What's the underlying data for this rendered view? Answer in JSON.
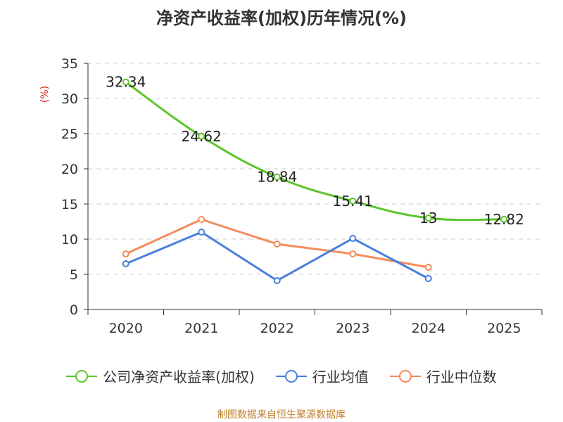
{
  "chart_data": {
    "type": "line",
    "title": "净资产收益率(加权)历年情况(%)",
    "ylabel": "(%)",
    "ylim": [
      0,
      35
    ],
    "yticks": [
      0,
      5,
      10,
      15,
      20,
      25,
      30,
      35
    ],
    "categories": [
      "2020",
      "2021",
      "2022",
      "2023",
      "2024",
      "2025"
    ],
    "series": [
      {
        "name": "公司净资产收益率(加权)",
        "color": "#5cc52b",
        "values": [
          32.34,
          24.62,
          18.84,
          15.41,
          13,
          12.82
        ],
        "labels": [
          "32.34",
          "24.62",
          "18.84",
          "15.41",
          "13",
          "12.82"
        ],
        "smooth": true
      },
      {
        "name": "行业均值",
        "color": "#4a7fdc",
        "values": [
          6.5,
          11.0,
          4.1,
          10.1,
          4.4,
          null
        ],
        "smooth": false
      },
      {
        "name": "行业中位数",
        "color": "#f58b5c",
        "values": [
          7.9,
          12.8,
          9.3,
          7.9,
          6.0,
          null
        ],
        "smooth": false
      }
    ],
    "grid": true,
    "legend_position": "bottom"
  },
  "footer": {
    "source": "制图数据来自恒生聚源数据库"
  }
}
